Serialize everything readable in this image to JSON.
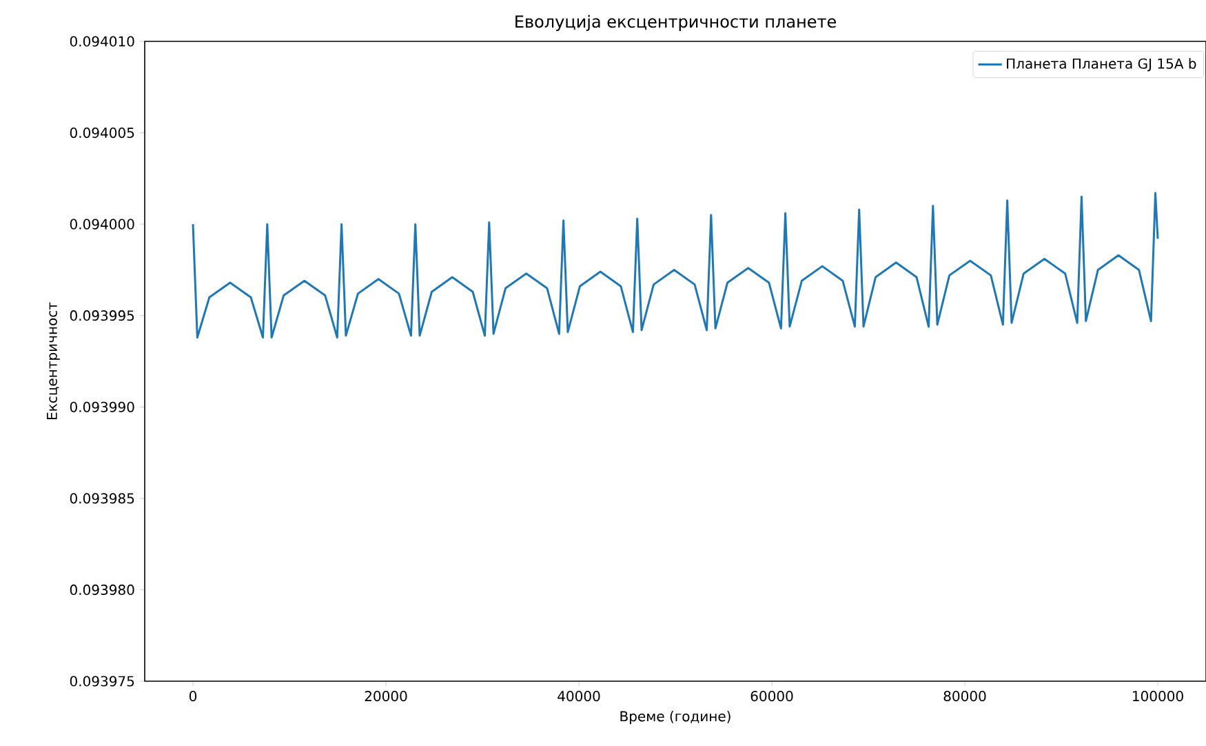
{
  "chart_data": {
    "type": "line",
    "title": "Еволуција ексцентричности планете",
    "xlabel": "Време (године)",
    "ylabel": "Ексцентричност",
    "xlim": [
      -5000,
      105000
    ],
    "xticks": [
      0,
      20000,
      40000,
      60000,
      80000,
      100000
    ],
    "ylim": [
      0.093975,
      0.09401
    ],
    "yticks": [
      {
        "value": 0.093975,
        "label": "0.093975"
      },
      {
        "value": 0.09398,
        "label": "0.093980"
      },
      {
        "value": 0.093985,
        "label": "0.093985"
      },
      {
        "value": 0.09399,
        "label": "0.093990"
      },
      {
        "value": 0.093995,
        "label": "0.093995"
      },
      {
        "value": 0.094,
        "label": "0.094000"
      },
      {
        "value": 0.094005,
        "label": "0.094005"
      },
      {
        "value": 0.09401,
        "label": "0.094010"
      }
    ],
    "legend": "top right",
    "grid": false,
    "series": [
      {
        "name": "Планета Планета GJ 15A b",
        "color": "#1f77b4",
        "x": [
          0,
          450,
          1700,
          3850,
          6000,
          7250,
          7700,
          8150,
          9400,
          11550,
          13700,
          14950,
          15400,
          15850,
          17100,
          19225,
          21350,
          22600,
          23050,
          23500,
          24750,
          26875,
          29000,
          30250,
          30700,
          31150,
          32400,
          34550,
          36700,
          37950,
          38400,
          38850,
          40100,
          42225,
          44350,
          45600,
          46050,
          46500,
          47750,
          49875,
          52000,
          53250,
          53700,
          54150,
          55400,
          57550,
          59700,
          60950,
          61400,
          61850,
          63100,
          65225,
          67350,
          68600,
          69050,
          69500,
          70750,
          72875,
          75000,
          76250,
          76700,
          77150,
          78400,
          80550,
          82700,
          83950,
          84400,
          84850,
          86100,
          88250,
          90400,
          91650,
          92100,
          92550,
          93800,
          95925,
          98050,
          99300,
          99750,
          100000
        ],
        "values": [
          0.094,
          0.0939938,
          0.093996,
          0.0939968,
          0.093996,
          0.0939938,
          0.094,
          0.0939938,
          0.0939961,
          0.0939969,
          0.0939961,
          0.0939938,
          0.094,
          0.0939939,
          0.0939962,
          0.093997,
          0.0939962,
          0.0939939,
          0.094,
          0.0939939,
          0.0939963,
          0.0939971,
          0.0939963,
          0.0939939,
          0.0940001,
          0.093994,
          0.0939965,
          0.0939973,
          0.0939965,
          0.093994,
          0.0940002,
          0.0939941,
          0.0939966,
          0.0939974,
          0.0939966,
          0.0939941,
          0.0940003,
          0.0939942,
          0.0939967,
          0.0939975,
          0.0939967,
          0.0939942,
          0.0940005,
          0.0939943,
          0.0939968,
          0.0939976,
          0.0939968,
          0.0939943,
          0.0940006,
          0.0939944,
          0.0939969,
          0.0939977,
          0.0939969,
          0.0939944,
          0.0940008,
          0.0939944,
          0.0939971,
          0.0939979,
          0.0939971,
          0.0939944,
          0.094001,
          0.0939945,
          0.0939972,
          0.093998,
          0.0939972,
          0.0939945,
          0.0940013,
          0.0939946,
          0.0939973,
          0.0939981,
          0.0939973,
          0.0939946,
          0.0940015,
          0.0939947,
          0.0939975,
          0.0939983,
          0.0939975,
          0.0939947,
          0.0940017,
          0.0939992
        ]
      }
    ]
  }
}
